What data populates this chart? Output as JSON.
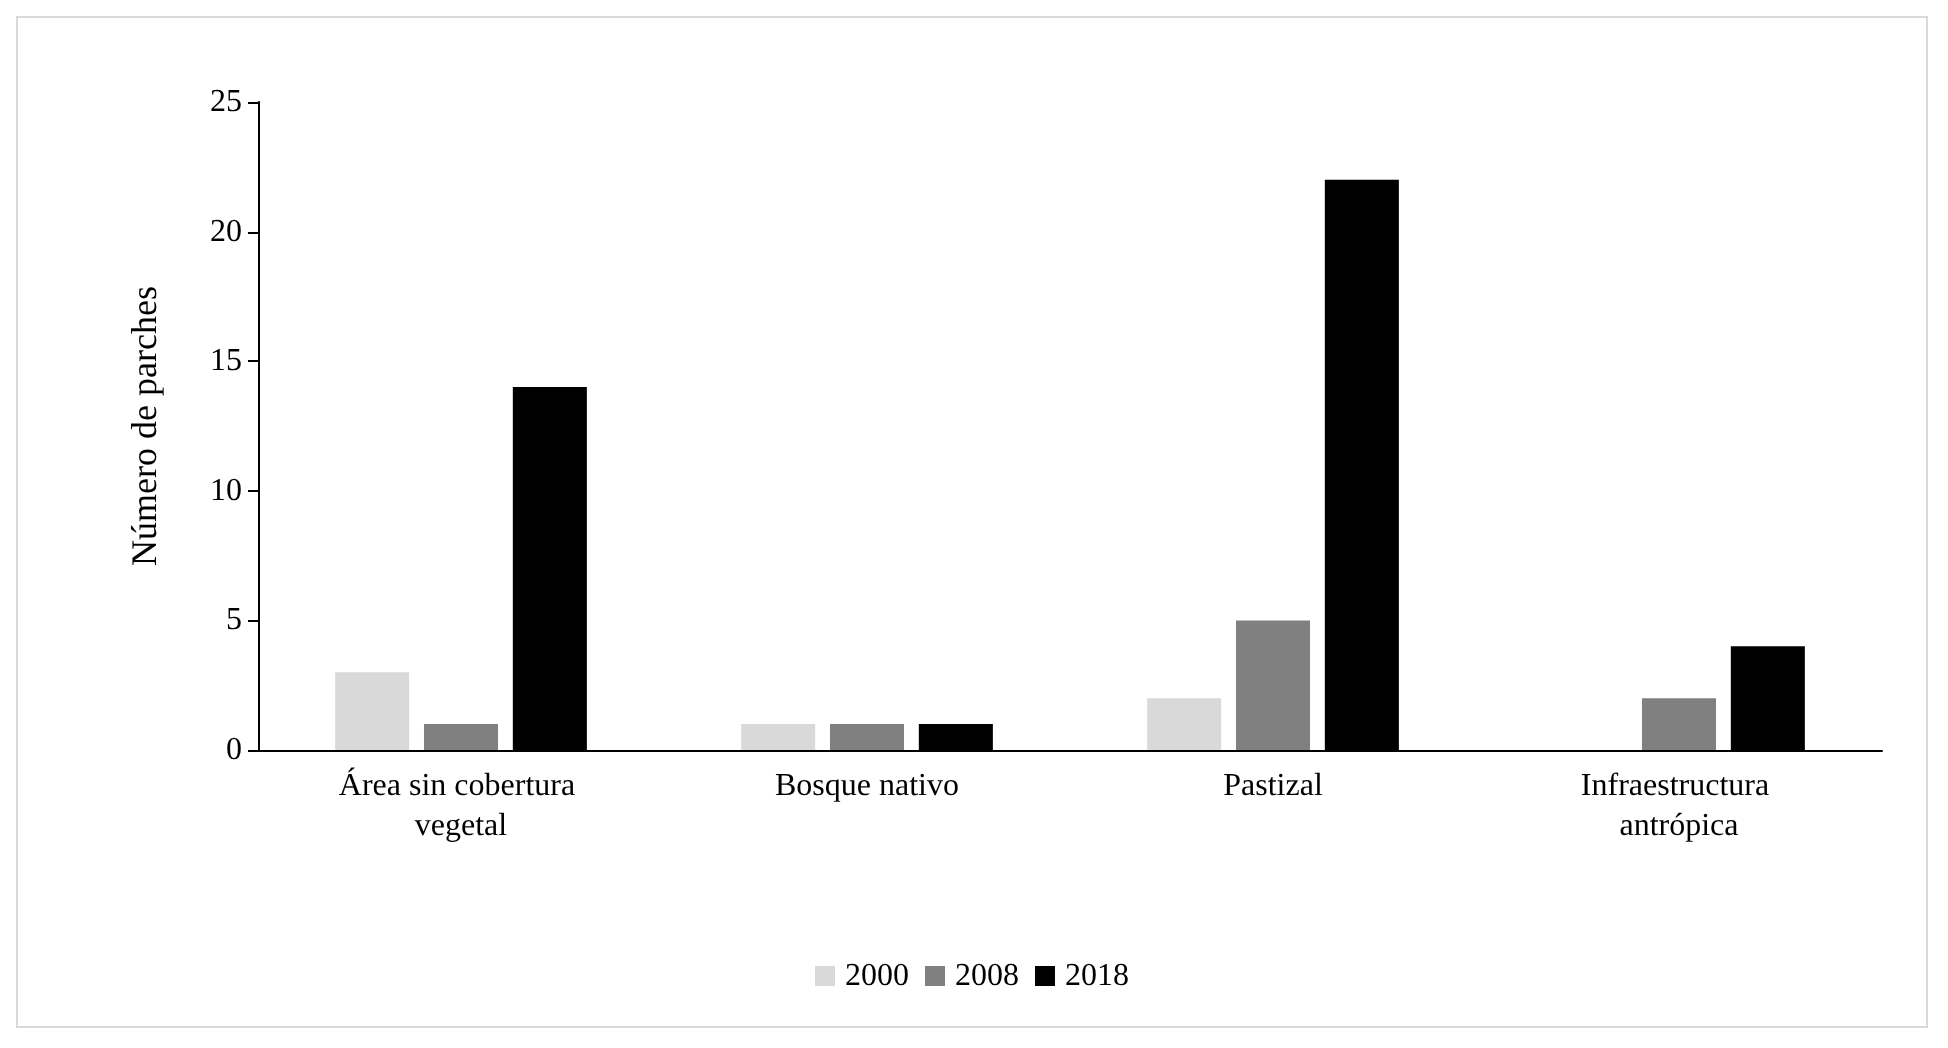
{
  "chart_data": {
    "type": "bar",
    "ylabel": "Número de parches",
    "categories": [
      "Área sin cobertura vegetal",
      "Bosque nativo",
      "Pastizal",
      "Infraestructura antrópica"
    ],
    "series": [
      {
        "name": "2000",
        "color": "#d9d9d9",
        "values": [
          3,
          1,
          2,
          0
        ]
      },
      {
        "name": "2008",
        "color": "#808080",
        "values": [
          1,
          1,
          5,
          2
        ]
      },
      {
        "name": "2018",
        "color": "#000000",
        "values": [
          14,
          1,
          22,
          4
        ]
      }
    ],
    "ylim": [
      0,
      25
    ],
    "yticks": [
      0,
      5,
      10,
      15,
      20,
      25
    ],
    "grid": false,
    "legend": "bottom"
  }
}
